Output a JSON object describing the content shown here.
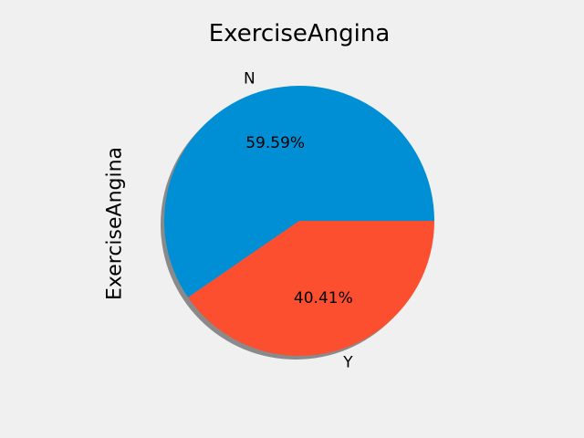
{
  "chart_data": {
    "type": "pie",
    "title": "ExerciseAngina",
    "ylabel": "ExerciseAngina",
    "shadow": true,
    "categories": [
      "N",
      "Y"
    ],
    "values": [
      59.59,
      40.41
    ],
    "percent_labels": [
      "59.59%",
      "40.41%"
    ],
    "colors": [
      "#008fd5",
      "#fc4f30"
    ]
  }
}
